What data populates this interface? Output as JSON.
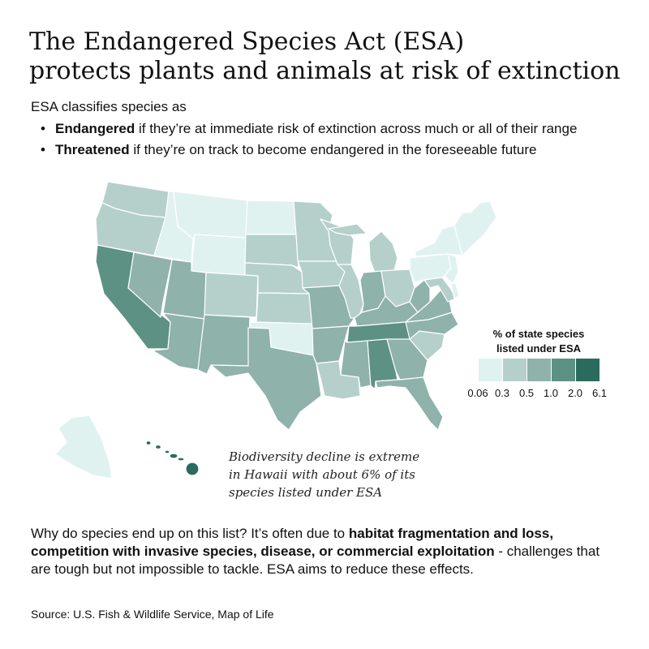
{
  "title": {
    "line1": "The Endangered Species Act (ESA)",
    "line2": "protects plants and animals at risk of extinction"
  },
  "intro": "ESA classifies species as",
  "bullets": [
    {
      "term": "Endangered",
      "text": " if they’re at immediate risk of extinction across much or all of their range"
    },
    {
      "term": "Threatened",
      "text": " if they’re on track to become endangered in the foreseeable future"
    }
  ],
  "legend": {
    "title_line1": "% of state species",
    "title_line2": "listed under ESA",
    "ticks": [
      "0.06",
      "0.3",
      "0.5",
      "1.0",
      "2.0",
      "6.1"
    ],
    "colors": [
      "#dff2f0",
      "#b5d0cb",
      "#8fb2aa",
      "#5d9184",
      "#2a6b5e"
    ]
  },
  "annotation": {
    "line1": "Biodiversity decline is extreme",
    "line2": "in Hawaii with about 6% of its",
    "line3": "species listed under ESA"
  },
  "closing": {
    "l1_text": "Why do species end up on this list? It’s often due to ",
    "l1_bold": "habitat fragmentation and loss,",
    "l2_bold": "competition with invasive species, disease, or commercial exploitation",
    "l2_text": " - challenges that",
    "line3": "are tough but not impossible to tackle. ESA aims to reduce these effects."
  },
  "source": "Source: U.S. Fish & Wildlife Service, Map of Life",
  "states": [
    {
      "id": "WA",
      "bin": 1
    },
    {
      "id": "OR",
      "bin": 1
    },
    {
      "id": "CA",
      "bin": 3
    },
    {
      "id": "ID",
      "bin": 0
    },
    {
      "id": "NV",
      "bin": 2
    },
    {
      "id": "MT",
      "bin": 0
    },
    {
      "id": "WY",
      "bin": 0
    },
    {
      "id": "UT",
      "bin": 2
    },
    {
      "id": "AZ",
      "bin": 2
    },
    {
      "id": "CO",
      "bin": 1
    },
    {
      "id": "NM",
      "bin": 2
    },
    {
      "id": "ND",
      "bin": 0
    },
    {
      "id": "SD",
      "bin": 1
    },
    {
      "id": "NE",
      "bin": 1
    },
    {
      "id": "KS",
      "bin": 1
    },
    {
      "id": "OK",
      "bin": 0
    },
    {
      "id": "TX",
      "bin": 2
    },
    {
      "id": "MN",
      "bin": 1
    },
    {
      "id": "IA",
      "bin": 1
    },
    {
      "id": "MO",
      "bin": 2
    },
    {
      "id": "AR",
      "bin": 2
    },
    {
      "id": "LA",
      "bin": 1
    },
    {
      "id": "WI",
      "bin": 1
    },
    {
      "id": "IL",
      "bin": 1
    },
    {
      "id": "MI",
      "bin": 1
    },
    {
      "id": "IN",
      "bin": 2
    },
    {
      "id": "OH",
      "bin": 1
    },
    {
      "id": "KY",
      "bin": 2
    },
    {
      "id": "TN",
      "bin": 3
    },
    {
      "id": "MS",
      "bin": 2
    },
    {
      "id": "AL",
      "bin": 3
    },
    {
      "id": "GA",
      "bin": 2
    },
    {
      "id": "FL",
      "bin": 2
    },
    {
      "id": "SC",
      "bin": 1
    },
    {
      "id": "NC",
      "bin": 2
    },
    {
      "id": "VA",
      "bin": 2
    },
    {
      "id": "WV",
      "bin": 2
    },
    {
      "id": "PA",
      "bin": 0
    },
    {
      "id": "NY",
      "bin": 0
    },
    {
      "id": "NJ",
      "bin": 0
    },
    {
      "id": "DE",
      "bin": 0
    },
    {
      "id": "MD",
      "bin": 1
    },
    {
      "id": "NE_US",
      "bin": 0
    },
    {
      "id": "AK",
      "bin": 0
    },
    {
      "id": "HI",
      "bin": 4
    }
  ]
}
